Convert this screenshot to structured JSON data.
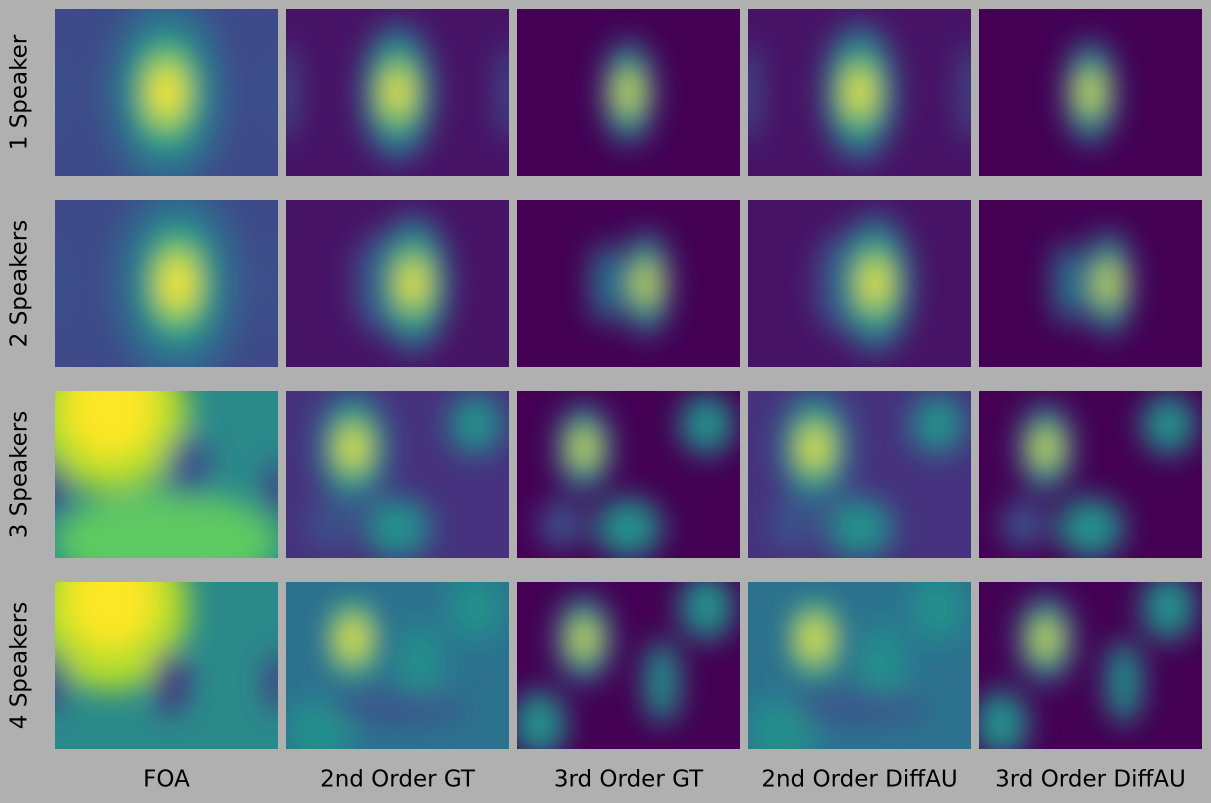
{
  "rows": [
    "1 Speaker",
    "2 Speakers",
    "3 Speakers",
    "4 Speakers"
  ],
  "columns": [
    "FOA",
    "2nd Order GT",
    "3rd Order GT",
    "2nd Order DiffAU",
    "3rd Order DiffAU"
  ]
}
